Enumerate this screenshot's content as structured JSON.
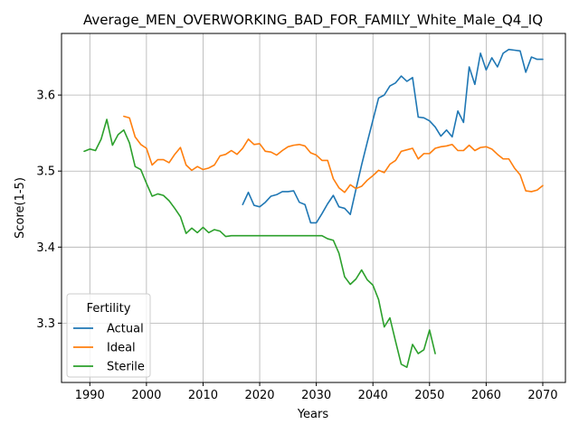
{
  "chart_data": {
    "type": "line",
    "title": "Average_MEN_OVERWORKING_BAD_FOR_FAMILY_White_Male_Q4_IQ",
    "xlabel": "Years",
    "ylabel": "Score(1-5)",
    "xlim": [
      1985,
      2074
    ],
    "ylim": [
      3.222,
      3.681
    ],
    "xticks": [
      1990,
      2000,
      2010,
      2020,
      2030,
      2040,
      2050,
      2060,
      2070
    ],
    "yticks": [
      3.3,
      3.4,
      3.5,
      3.6
    ],
    "grid": true,
    "legend": {
      "title": "Fertility",
      "position": "lower-left"
    },
    "series": [
      {
        "name": "Actual",
        "color": "#1f77b4",
        "points": [
          [
            2017,
            3.456
          ],
          [
            2018,
            3.472
          ],
          [
            2019,
            3.455
          ],
          [
            2020,
            3.453
          ],
          [
            2021,
            3.459
          ],
          [
            2022,
            3.467
          ],
          [
            2023,
            3.469
          ],
          [
            2024,
            3.473
          ],
          [
            2025,
            3.473
          ],
          [
            2026,
            3.474
          ],
          [
            2027,
            3.459
          ],
          [
            2028,
            3.456
          ],
          [
            2029,
            3.432
          ],
          [
            2030,
            3.432
          ],
          [
            2031,
            3.444
          ],
          [
            2032,
            3.457
          ],
          [
            2033,
            3.468
          ],
          [
            2034,
            3.453
          ],
          [
            2035,
            3.451
          ],
          [
            2036,
            3.443
          ],
          [
            2037,
            3.476
          ],
          [
            2038,
            3.508
          ],
          [
            2039,
            3.538
          ],
          [
            2040,
            3.567
          ],
          [
            2041,
            3.596
          ],
          [
            2042,
            3.6
          ],
          [
            2043,
            3.612
          ],
          [
            2044,
            3.616
          ],
          [
            2045,
            3.625
          ],
          [
            2046,
            3.618
          ],
          [
            2047,
            3.623
          ],
          [
            2048,
            3.571
          ],
          [
            2049,
            3.57
          ],
          [
            2050,
            3.566
          ],
          [
            2051,
            3.558
          ],
          [
            2052,
            3.546
          ],
          [
            2053,
            3.554
          ],
          [
            2054,
            3.545
          ],
          [
            2055,
            3.579
          ],
          [
            2056,
            3.564
          ],
          [
            2057,
            3.637
          ],
          [
            2058,
            3.614
          ],
          [
            2059,
            3.655
          ],
          [
            2060,
            3.633
          ],
          [
            2061,
            3.649
          ],
          [
            2062,
            3.637
          ],
          [
            2063,
            3.655
          ],
          [
            2064,
            3.66
          ],
          [
            2065,
            3.659
          ],
          [
            2066,
            3.658
          ],
          [
            2067,
            3.63
          ],
          [
            2068,
            3.65
          ],
          [
            2069,
            3.647
          ],
          [
            2070,
            3.647
          ]
        ]
      },
      {
        "name": "Ideal",
        "color": "#ff7f0e",
        "points": [
          [
            1996,
            3.572
          ],
          [
            1997,
            3.57
          ],
          [
            1998,
            3.545
          ],
          [
            1999,
            3.535
          ],
          [
            2000,
            3.53
          ],
          [
            2001,
            3.508
          ],
          [
            2002,
            3.515
          ],
          [
            2003,
            3.515
          ],
          [
            2004,
            3.511
          ],
          [
            2005,
            3.522
          ],
          [
            2006,
            3.531
          ],
          [
            2007,
            3.508
          ],
          [
            2008,
            3.501
          ],
          [
            2009,
            3.506
          ],
          [
            2010,
            3.502
          ],
          [
            2011,
            3.504
          ],
          [
            2012,
            3.508
          ],
          [
            2013,
            3.52
          ],
          [
            2014,
            3.522
          ],
          [
            2015,
            3.527
          ],
          [
            2016,
            3.522
          ],
          [
            2017,
            3.53
          ],
          [
            2018,
            3.542
          ],
          [
            2019,
            3.535
          ],
          [
            2020,
            3.536
          ],
          [
            2021,
            3.526
          ],
          [
            2022,
            3.525
          ],
          [
            2023,
            3.521
          ],
          [
            2024,
            3.527
          ],
          [
            2025,
            3.532
          ],
          [
            2026,
            3.534
          ],
          [
            2027,
            3.535
          ],
          [
            2028,
            3.533
          ],
          [
            2029,
            3.524
          ],
          [
            2030,
            3.521
          ],
          [
            2031,
            3.514
          ],
          [
            2032,
            3.514
          ],
          [
            2033,
            3.49
          ],
          [
            2034,
            3.478
          ],
          [
            2035,
            3.472
          ],
          [
            2036,
            3.482
          ],
          [
            2037,
            3.477
          ],
          [
            2038,
            3.48
          ],
          [
            2039,
            3.488
          ],
          [
            2040,
            3.494
          ],
          [
            2041,
            3.501
          ],
          [
            2042,
            3.498
          ],
          [
            2043,
            3.509
          ],
          [
            2044,
            3.514
          ],
          [
            2045,
            3.526
          ],
          [
            2046,
            3.528
          ],
          [
            2047,
            3.53
          ],
          [
            2048,
            3.516
          ],
          [
            2049,
            3.523
          ],
          [
            2050,
            3.523
          ],
          [
            2051,
            3.53
          ],
          [
            2052,
            3.532
          ],
          [
            2053,
            3.533
          ],
          [
            2054,
            3.535
          ],
          [
            2055,
            3.527
          ],
          [
            2056,
            3.527
          ],
          [
            2057,
            3.534
          ],
          [
            2058,
            3.527
          ],
          [
            2059,
            3.531
          ],
          [
            2060,
            3.532
          ],
          [
            2061,
            3.529
          ],
          [
            2062,
            3.522
          ],
          [
            2063,
            3.516
          ],
          [
            2064,
            3.516
          ],
          [
            2065,
            3.504
          ],
          [
            2066,
            3.495
          ],
          [
            2067,
            3.474
          ],
          [
            2068,
            3.473
          ],
          [
            2069,
            3.475
          ],
          [
            2070,
            3.481
          ]
        ]
      },
      {
        "name": "Sterile",
        "color": "#2ca02c",
        "points": [
          [
            1989,
            3.526
          ],
          [
            1990,
            3.529
          ],
          [
            1991,
            3.527
          ],
          [
            1992,
            3.542
          ],
          [
            1993,
            3.568
          ],
          [
            1994,
            3.534
          ],
          [
            1995,
            3.548
          ],
          [
            1996,
            3.554
          ],
          [
            1997,
            3.537
          ],
          [
            1998,
            3.506
          ],
          [
            1999,
            3.502
          ],
          [
            2000,
            3.484
          ],
          [
            2001,
            3.467
          ],
          [
            2002,
            3.47
          ],
          [
            2003,
            3.468
          ],
          [
            2004,
            3.461
          ],
          [
            2005,
            3.451
          ],
          [
            2006,
            3.44
          ],
          [
            2007,
            3.418
          ],
          [
            2008,
            3.425
          ],
          [
            2009,
            3.419
          ],
          [
            2010,
            3.426
          ],
          [
            2011,
            3.419
          ],
          [
            2012,
            3.423
          ],
          [
            2013,
            3.421
          ],
          [
            2014,
            3.414
          ],
          [
            2015,
            3.415
          ],
          [
            2016,
            3.415
          ],
          [
            2017,
            3.415
          ],
          [
            2018,
            3.415
          ],
          [
            2019,
            3.415
          ],
          [
            2020,
            3.415
          ],
          [
            2021,
            3.415
          ],
          [
            2022,
            3.415
          ],
          [
            2023,
            3.415
          ],
          [
            2024,
            3.415
          ],
          [
            2025,
            3.415
          ],
          [
            2026,
            3.415
          ],
          [
            2027,
            3.415
          ],
          [
            2028,
            3.415
          ],
          [
            2029,
            3.415
          ],
          [
            2030,
            3.415
          ],
          [
            2031,
            3.415
          ],
          [
            2032,
            3.411
          ],
          [
            2033,
            3.409
          ],
          [
            2034,
            3.392
          ],
          [
            2035,
            3.361
          ],
          [
            2036,
            3.351
          ],
          [
            2037,
            3.358
          ],
          [
            2038,
            3.37
          ],
          [
            2039,
            3.357
          ],
          [
            2040,
            3.35
          ],
          [
            2041,
            3.331
          ],
          [
            2042,
            3.295
          ],
          [
            2043,
            3.307
          ],
          [
            2044,
            3.276
          ],
          [
            2045,
            3.246
          ],
          [
            2046,
            3.242
          ],
          [
            2047,
            3.272
          ],
          [
            2048,
            3.26
          ],
          [
            2049,
            3.265
          ],
          [
            2050,
            3.291
          ],
          [
            2051,
            3.26
          ]
        ]
      }
    ]
  }
}
